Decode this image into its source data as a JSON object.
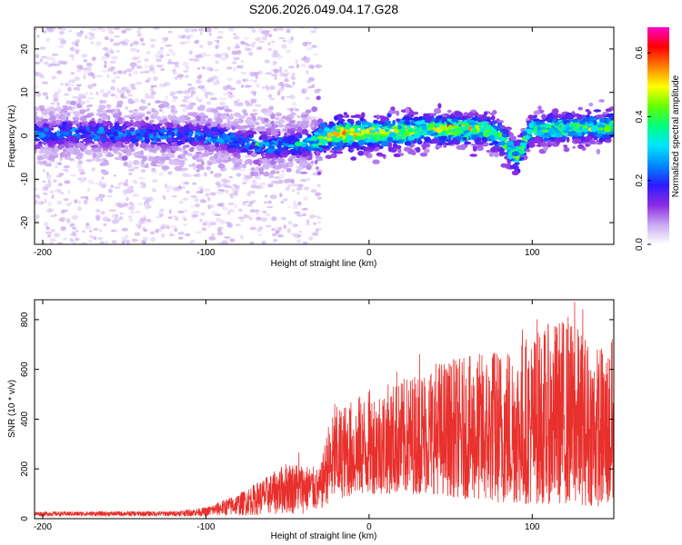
{
  "title": "S206.2026.049.04.17.G28",
  "chart_data": [
    {
      "type": "heatmap",
      "title": "S206.2026.049.04.17.G28",
      "xlabel": "Height of straight line (km)",
      "ylabel": "Frequency (Hz)",
      "xlim": [
        -205,
        150
      ],
      "ylim": [
        -25,
        25
      ],
      "xticks": [
        -200,
        -100,
        0,
        100
      ],
      "xtick_labels": [
        "-200",
        "-100",
        "0",
        "100"
      ],
      "yticks": [
        20,
        10,
        0,
        -10,
        -20
      ],
      "ytick_labels": [
        "20",
        "10",
        "0",
        "-10",
        "-20"
      ],
      "colorbar": {
        "label": "Normalized spectral amplitude",
        "range": [
          0.0,
          0.68
        ],
        "ticks": [
          0.0,
          0.2,
          0.4,
          0.6
        ],
        "tick_labels": [
          "0.0",
          "0.2",
          "0.4",
          "0.6"
        ],
        "colors": [
          "#ffffff",
          "#c9a8f2",
          "#8a2be2",
          "#2a1cff",
          "#0088ff",
          "#00e5ff",
          "#00ff80",
          "#66ff00",
          "#ffff00",
          "#ff8000",
          "#ff0000",
          "#ff00c8"
        ]
      },
      "signal_center_freq_hz": [
        [
          -200,
          0.5
        ],
        [
          -150,
          0.5
        ],
        [
          -100,
          0.0
        ],
        [
          -60,
          -2.5
        ],
        [
          -35,
          -1.5
        ],
        [
          -20,
          0.5
        ],
        [
          0,
          0.5
        ],
        [
          40,
          1.5
        ],
        [
          70,
          1.5
        ],
        [
          80,
          0.0
        ],
        [
          90,
          -5.0
        ],
        [
          100,
          1.5
        ],
        [
          150,
          2.0
        ]
      ],
      "signal_peak_amplitude": [
        [
          -200,
          0.28
        ],
        [
          -100,
          0.28
        ],
        [
          -40,
          0.32
        ],
        [
          -20,
          0.6
        ],
        [
          0,
          0.55
        ],
        [
          40,
          0.5
        ],
        [
          70,
          0.5
        ],
        [
          100,
          0.45
        ],
        [
          150,
          0.45
        ]
      ]
    },
    {
      "type": "line",
      "xlabel": "Height of straight line (km)",
      "ylabel": "SNR (10 * v/v)",
      "xlim": [
        -205,
        150
      ],
      "ylim": [
        0,
        880
      ],
      "xticks": [
        -200,
        -100,
        0,
        100
      ],
      "xtick_labels": [
        "-200",
        "-100",
        "0",
        "100"
      ],
      "yticks": [
        0,
        200,
        400,
        600,
        800
      ],
      "ytick_labels": [
        "0",
        "200",
        "400",
        "600",
        "800"
      ],
      "color": "#e8302c",
      "series": [
        {
          "name": "SNR",
          "envelope_x": [
            -205,
            -120,
            -100,
            -80,
            -60,
            -50,
            -40,
            -30,
            -25,
            -20,
            -10,
            0,
            20,
            40,
            60,
            80,
            100,
            120,
            140,
            150
          ],
          "envelope_upper": [
            28,
            30,
            45,
            100,
            180,
            230,
            220,
            200,
            380,
            450,
            480,
            520,
            560,
            640,
            650,
            700,
            750,
            820,
            700,
            720
          ],
          "envelope_lower": [
            10,
            10,
            10,
            12,
            15,
            18,
            20,
            25,
            60,
            80,
            90,
            100,
            100,
            100,
            80,
            60,
            60,
            60,
            50,
            40
          ],
          "peaks": [
            {
              "x": -43,
              "y": 265
            },
            {
              "x": -21,
              "y": 460
            },
            {
              "x": 17,
              "y": 590
            },
            {
              "x": 31,
              "y": 660
            },
            {
              "x": 52,
              "y": 635
            },
            {
              "x": 76,
              "y": 660
            },
            {
              "x": 94,
              "y": 760
            },
            {
              "x": 103,
              "y": 800
            },
            {
              "x": 122,
              "y": 810
            },
            {
              "x": 126,
              "y": 870
            },
            {
              "x": 131,
              "y": 840
            },
            {
              "x": 149,
              "y": 720
            }
          ]
        }
      ]
    }
  ]
}
